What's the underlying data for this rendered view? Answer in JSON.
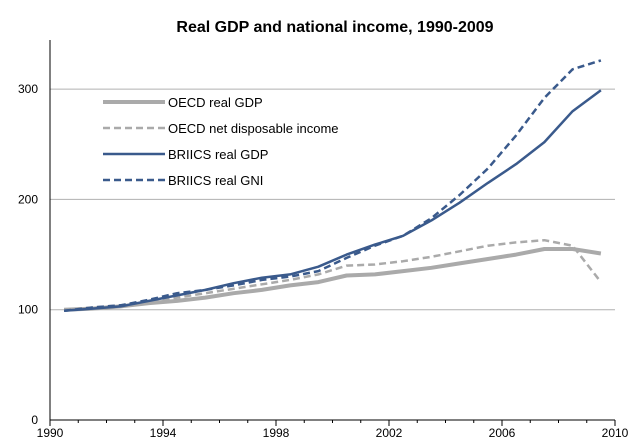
{
  "chart_data": {
    "type": "line",
    "title": "Real GDP and national income, 1990-2009",
    "xlabel": "",
    "ylabel": "",
    "xlim": [
      1990,
      2010
    ],
    "ylim": [
      0,
      340
    ],
    "x_ticks": [
      "1990",
      "1994",
      "1998",
      "2002",
      "2006",
      "2010"
    ],
    "y_ticks": [
      "0",
      "100",
      "200",
      "300"
    ],
    "grid": "horizontal",
    "legend_position": "top-left",
    "series": [
      {
        "name": "OECD real GDP",
        "color": "#aaaaaa",
        "style": "solid-thick",
        "x": [
          1990,
          1991,
          1992,
          1993,
          1994,
          1995,
          1996,
          1997,
          1998,
          1999,
          2000,
          2001,
          2002,
          2003,
          2004,
          2005,
          2006,
          2007,
          2008,
          2009
        ],
        "values": [
          100,
          101,
          103,
          106,
          108,
          111,
          115,
          118,
          122,
          125,
          131,
          132,
          135,
          138,
          142,
          146,
          150,
          155,
          155,
          151
        ]
      },
      {
        "name": "OECD net disposable income",
        "color": "#aaaaaa",
        "style": "dashed",
        "x": [
          1990,
          1991,
          1992,
          1993,
          1994,
          1995,
          1996,
          1997,
          1998,
          1999,
          2000,
          2001,
          2002,
          2003,
          2004,
          2005,
          2006,
          2007,
          2008,
          2009
        ],
        "values": [
          100,
          102,
          104,
          107,
          111,
          115,
          119,
          123,
          127,
          132,
          140,
          141,
          144,
          148,
          153,
          158,
          161,
          163,
          158,
          125
        ]
      },
      {
        "name": "BRIICS real GDP",
        "color": "#3a5a8c",
        "style": "solid",
        "x": [
          1990,
          1991,
          1992,
          1993,
          1994,
          1995,
          1996,
          1997,
          1998,
          1999,
          2000,
          2001,
          2002,
          2003,
          2004,
          2005,
          2006,
          2007,
          2008,
          2009
        ],
        "values": [
          99,
          101,
          103,
          108,
          113,
          118,
          124,
          129,
          132,
          139,
          150,
          159,
          167,
          181,
          197,
          215,
          232,
          252,
          280,
          299
        ]
      },
      {
        "name": "BRIICS real GNI",
        "color": "#3a5a8c",
        "style": "dashed",
        "x": [
          1990,
          1991,
          1992,
          1993,
          1994,
          1995,
          1996,
          1997,
          1998,
          1999,
          2000,
          2001,
          2002,
          2003,
          2004,
          2005,
          2006,
          2007,
          2008,
          2009
        ],
        "values": [
          99,
          102,
          104,
          109,
          115,
          118,
          122,
          127,
          130,
          135,
          147,
          158,
          167,
          183,
          204,
          228,
          258,
          292,
          318,
          326
        ]
      }
    ]
  }
}
